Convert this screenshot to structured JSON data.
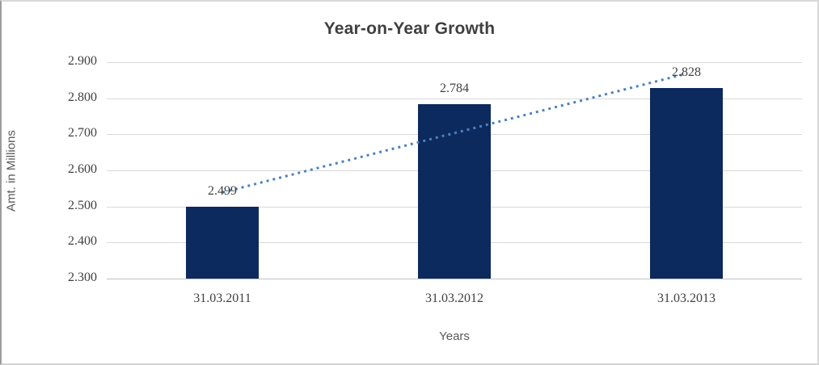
{
  "window": {
    "background": "#ffffff",
    "border_color": "#d9d9d9"
  },
  "chart_data": {
    "type": "bar",
    "title": "Year-on-Year Growth",
    "categories": [
      "31.03.2011",
      "31.03.2012",
      "31.03.2013"
    ],
    "values": [
      2.499,
      2.784,
      2.828
    ],
    "data_labels": [
      "2.499",
      "2.784",
      "2.828"
    ],
    "xlabel": "Years",
    "ylabel": "Amt. in Millions",
    "ylim": [
      2.3,
      2.9
    ],
    "ytick_step": 0.1,
    "ytick_labels": [
      "2.300",
      "2.400",
      "2.500",
      "2.600",
      "2.700",
      "2.800",
      "2.900"
    ],
    "grid": true,
    "legend": "none",
    "bar_color": "#0d2a5e",
    "gridline_color": "#d9d9d9",
    "axis_line_color": "#c0c0c0",
    "tick_text_color": "#404040",
    "data_label_color": "#404040",
    "axis_title_color": "#595959",
    "title_color": "#3f3f3f",
    "trendline": {
      "type": "linear",
      "style": "dotted",
      "color": "#4f81bd",
      "start_value": 2.539,
      "end_value": 2.868
    }
  }
}
